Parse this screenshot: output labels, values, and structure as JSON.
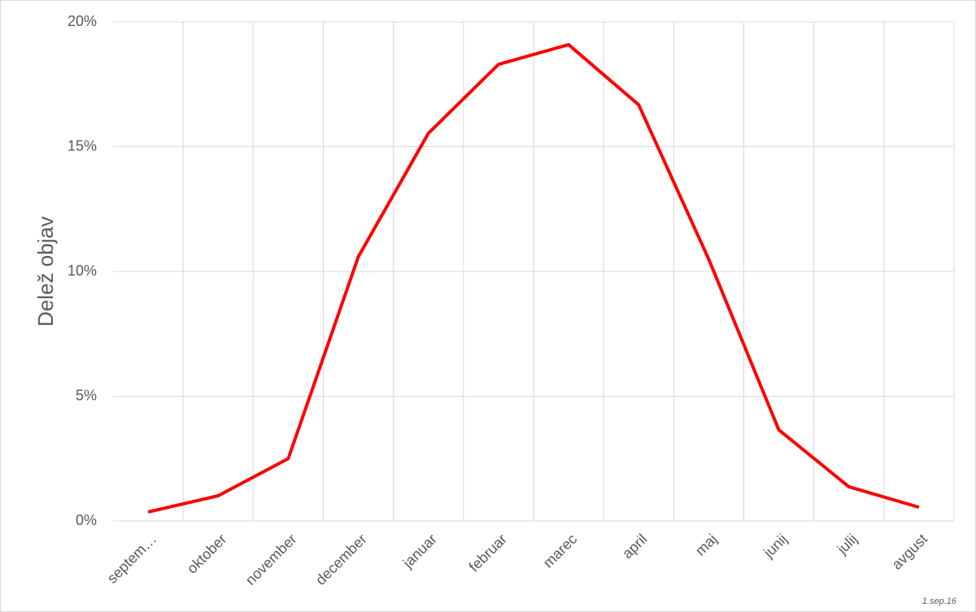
{
  "chart_data": {
    "type": "line",
    "y_label": "Delež objav",
    "note": "1.sep.16",
    "categories": [
      "septem…",
      "oktober",
      "november",
      "december",
      "januar",
      "februar",
      "marec",
      "april",
      "maj",
      "junij",
      "julij",
      "avgust"
    ],
    "series": [
      {
        "name": "Delež objav",
        "color": "#ff0000",
        "values": [
          0.36,
          1.01,
          2.5,
          10.59,
          15.54,
          18.3,
          19.09,
          16.68,
          10.49,
          3.65,
          1.37,
          0.55
        ]
      }
    ],
    "ylim": [
      0,
      20
    ],
    "yticks": [
      {
        "value": 0,
        "label": "0%"
      },
      {
        "value": 5,
        "label": "5%"
      },
      {
        "value": 10,
        "label": "10%"
      },
      {
        "value": 15,
        "label": "15%"
      },
      {
        "value": 20,
        "label": "20%"
      }
    ],
    "grid": true
  }
}
